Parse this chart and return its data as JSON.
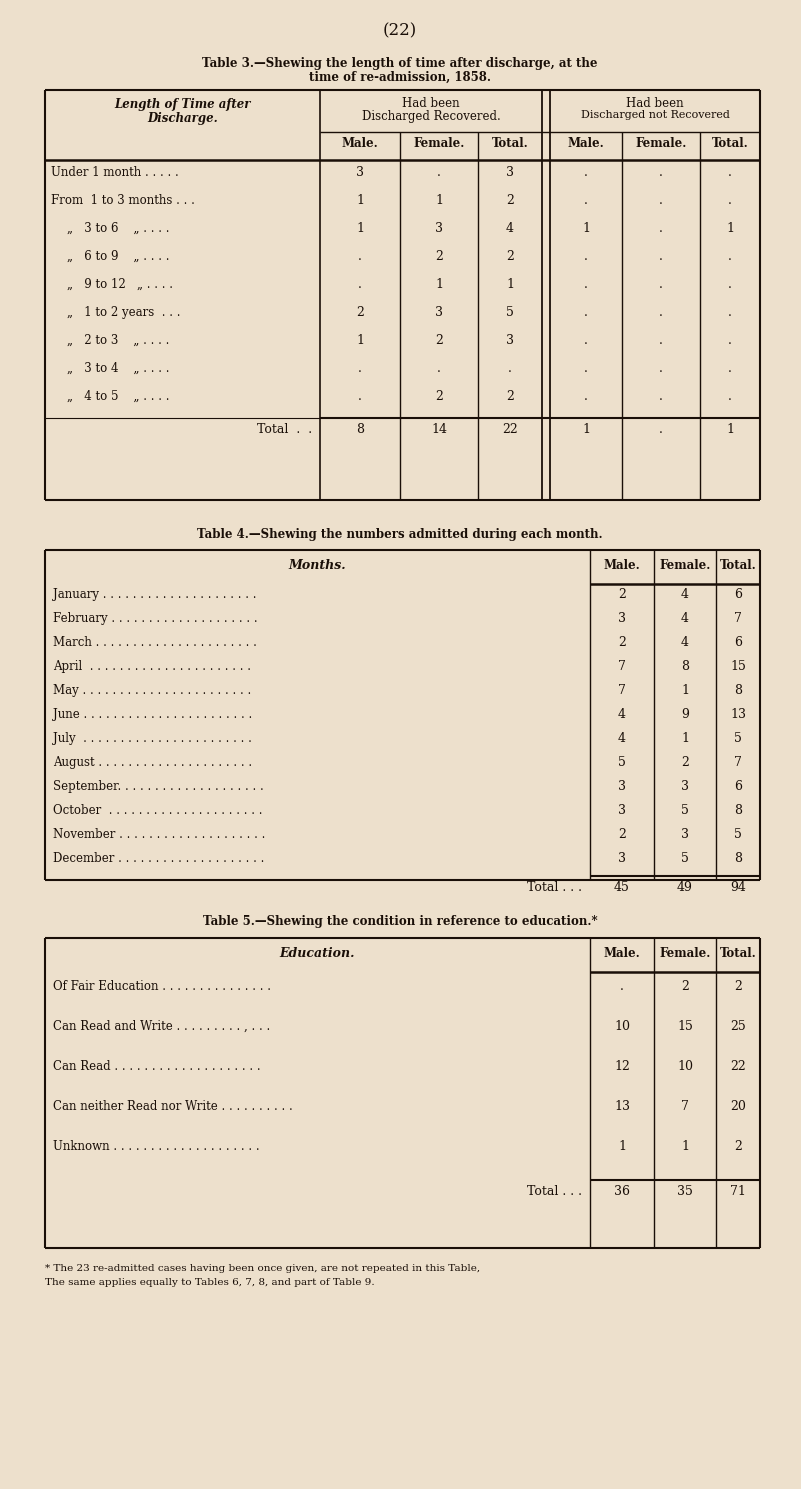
{
  "page_number": "(22)",
  "bg_color": "#ede0cc",
  "text_color": "#1a0f08",
  "table3_title_line1": "Table 3.—Shewing the length of time after discharge, at the",
  "table3_title_line2": "time of re-admission, 1858.",
  "table4_title": "Table 4.—Shewing the numbers admitted during each month.",
  "table5_title": "Table 5.—Shewing the condition in reference to education.*",
  "table3_subheaders": [
    "Male.",
    "Female.",
    "Total.",
    "Male.",
    "Female.",
    "Total."
  ],
  "table3_rows": [
    [
      "Under 1 month . . . . .",
      "3",
      ".",
      "3",
      ".",
      ".",
      "."
    ],
    [
      "From  1 to 3 months . . .",
      "1",
      "1",
      "2",
      ".",
      ".",
      "."
    ],
    [
      "„   3 to 6    „ . . . .",
      "1",
      "3",
      "4",
      "1",
      ".",
      "1"
    ],
    [
      "„   6 to 9    „ . . . .",
      ".",
      "2",
      "2",
      ".",
      ".",
      "."
    ],
    [
      "„   9 to 12   „ . . . .",
      ".",
      "1",
      "1",
      ".",
      ".",
      "."
    ],
    [
      "„   1 to 2 years  . . .",
      "2",
      "3",
      "5",
      ".",
      ".",
      "."
    ],
    [
      "„   2 to 3    „ . . . .",
      "1",
      "2",
      "3",
      ".",
      ".",
      "."
    ],
    [
      "„   3 to 4    „ . . . .",
      ".",
      ".",
      ".",
      ".",
      ".",
      "."
    ],
    [
      "„   4 to 5    „ . . . .",
      ".",
      "2",
      "2",
      ".",
      ".",
      "."
    ]
  ],
  "table3_total": [
    "Total  .  .",
    "8",
    "14",
    "22",
    "1",
    ".",
    "1"
  ],
  "table4_rows": [
    [
      "January . . . . . . . . . . . . . . . . . . . . .",
      "2",
      "4",
      "6"
    ],
    [
      "February . . . . . . . . . . . . . . . . . . . .",
      "3",
      "4",
      "7"
    ],
    [
      "March . . . . . . . . . . . . . . . . . . . . . .",
      "2",
      "4",
      "6"
    ],
    [
      "April  . . . . . . . . . . . . . . . . . . . . . .",
      "7",
      "8",
      "15"
    ],
    [
      "May . . . . . . . . . . . . . . . . . . . . . . .",
      "7",
      "1",
      "8"
    ],
    [
      "June . . . . . . . . . . . . . . . . . . . . . . .",
      "4",
      "9",
      "13"
    ],
    [
      "July  . . . . . . . . . . . . . . . . . . . . . . .",
      "4",
      "1",
      "5"
    ],
    [
      "August . . . . . . . . . . . . . . . . . . . . .",
      "5",
      "2",
      "7"
    ],
    [
      "September. . . . . . . . . . . . . . . . . . . .",
      "3",
      "3",
      "6"
    ],
    [
      "October  . . . . . . . . . . . . . . . . . . . . .",
      "3",
      "5",
      "8"
    ],
    [
      "November . . . . . . . . . . . . . . . . . . . .",
      "2",
      "3",
      "5"
    ],
    [
      "December . . . . . . . . . . . . . . . . . . . .",
      "3",
      "5",
      "8"
    ]
  ],
  "table4_total": [
    "Total . . .",
    "45",
    "49",
    "94"
  ],
  "table4_subheaders": [
    "Male.",
    "Female.",
    "Total."
  ],
  "table5_rows": [
    [
      "Of Fair Education . . . . . . . . . . . . . . .",
      ".",
      "2",
      "2"
    ],
    [
      "Can Read and Write . . . . . . . . . , . . .",
      "10",
      "15",
      "25"
    ],
    [
      "Can Read . . . . . . . . . . . . . . . . . . . .",
      "12",
      "10",
      "22"
    ],
    [
      "Can neither Read nor Write . . . . . . . . . .",
      "13",
      "7",
      "20"
    ],
    [
      "Unknown . . . . . . . . . . . . . . . . . . . .",
      "1",
      "1",
      "2"
    ]
  ],
  "table5_total": [
    "Total . . .",
    "36",
    "35",
    "71"
  ],
  "table5_subheaders": [
    "Male.",
    "Female.",
    "Total."
  ],
  "table5_footnote_line1": "* The 23 re-admitted cases having been once given, are not repeated in this Table,",
  "table5_footnote_line2": "The same applies equally to Tables 6, 7, 8, and part of Table 9."
}
